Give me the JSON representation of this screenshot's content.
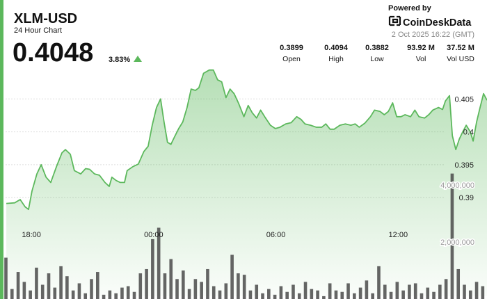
{
  "header": {
    "price": "0.4048",
    "change": "3.83%",
    "powered_by": "Powered by",
    "brand": "CoinDeskData",
    "timestamp": "2 Oct 2025 16:22 (GMT)",
    "stats": [
      {
        "value": "0.3899",
        "label": "Open"
      },
      {
        "value": "0.4094",
        "label": "High"
      },
      {
        "value": "0.3882",
        "label": "Low"
      },
      {
        "value": "93.92 M",
        "label": "Vol"
      },
      {
        "value": "37.52 M",
        "label": "Vol USD"
      }
    ]
  },
  "chart_data": [
    {
      "type": "area",
      "title": "XLM-USD",
      "subtitle": "24 Hour Chart",
      "color": "#5cb85c",
      "grid": true,
      "x": [
        16.77,
        17.18,
        17.45,
        17.69,
        17.86,
        18.03,
        18.27,
        18.48,
        18.72,
        18.95,
        19.23,
        19.5,
        19.67,
        19.91,
        20.11,
        20.42,
        20.66,
        20.86,
        21.1,
        21.34,
        21.61,
        21.82,
        21.95,
        22.16,
        22.36,
        22.57,
        22.7,
        22.98,
        23.25,
        23.52,
        23.73,
        23.93,
        24.14,
        24.34,
        24.51,
        24.68,
        24.85,
        25.02,
        25.23,
        25.43,
        25.64,
        25.84,
        26.05,
        26.22,
        26.45,
        26.73,
        26.93,
        27.14,
        27.34,
        27.55,
        27.75,
        27.95,
        28.16,
        28.43,
        28.64,
        28.84,
        29.05,
        29.25,
        29.45,
        29.73,
        29.97,
        30.2,
        30.48,
        30.75,
        31.02,
        31.23,
        31.43,
        31.7,
        31.98,
        32.25,
        32.45,
        32.66,
        32.86,
        33.14,
        33.41,
        33.68,
        33.89,
        34.09,
        34.36,
        34.64,
        34.84,
        35.11,
        35.32,
        35.52,
        35.73,
        35.93,
        36.14,
        36.34,
        36.61,
        36.82,
        37.02,
        37.3,
        37.5,
        37.7,
        37.98,
        38.18,
        38.32,
        38.52,
        38.66,
        38.83,
        39.0,
        39.17,
        39.34,
        39.54,
        39.68,
        39.85,
        40.02,
        40.19,
        40.36
      ],
      "values": [
        0.3891,
        0.3892,
        0.3897,
        0.3886,
        0.3882,
        0.391,
        0.3936,
        0.395,
        0.3931,
        0.3923,
        0.3947,
        0.3968,
        0.3973,
        0.3966,
        0.3941,
        0.3936,
        0.3944,
        0.3943,
        0.3936,
        0.3934,
        0.3923,
        0.3917,
        0.3931,
        0.3926,
        0.3923,
        0.3923,
        0.3941,
        0.3947,
        0.3951,
        0.397,
        0.3978,
        0.401,
        0.4037,
        0.405,
        0.4015,
        0.3984,
        0.3981,
        0.3992,
        0.4005,
        0.4015,
        0.4037,
        0.4065,
        0.4063,
        0.4067,
        0.4089,
        0.4094,
        0.4094,
        0.4079,
        0.4076,
        0.4052,
        0.4065,
        0.4058,
        0.4044,
        0.4023,
        0.404,
        0.4029,
        0.4021,
        0.4033,
        0.4023,
        0.401,
        0.4005,
        0.4007,
        0.4012,
        0.4014,
        0.4023,
        0.4019,
        0.4012,
        0.401,
        0.4007,
        0.4007,
        0.4012,
        0.4004,
        0.4004,
        0.401,
        0.4012,
        0.401,
        0.4012,
        0.4007,
        0.4013,
        0.4023,
        0.4033,
        0.4031,
        0.4026,
        0.4031,
        0.4044,
        0.4023,
        0.4023,
        0.4026,
        0.4023,
        0.4033,
        0.4023,
        0.4021,
        0.4026,
        0.4033,
        0.4037,
        0.4034,
        0.4047,
        0.4055,
        0.3994,
        0.3973,
        0.3989,
        0.4,
        0.401,
        0.4,
        0.3986,
        0.4015,
        0.4037,
        0.4058,
        0.4048
      ],
      "xlim": [
        16.75,
        40.36
      ],
      "ylim": [
        0.375,
        0.41
      ],
      "xticks": [
        {
          "value": 18,
          "label": "18:00"
        },
        {
          "value": 24,
          "label": "00:00"
        },
        {
          "value": 30,
          "label": "06:00"
        },
        {
          "value": 36,
          "label": "12:00"
        }
      ],
      "yticks": [
        0.39,
        0.395,
        0.4,
        0.405
      ]
    },
    {
      "type": "bar",
      "color": "#4a4a4a",
      "x": [
        16.75,
        17.05,
        17.35,
        17.65,
        17.95,
        18.25,
        18.55,
        18.85,
        19.15,
        19.45,
        19.75,
        20.05,
        20.35,
        20.65,
        20.95,
        21.25,
        21.55,
        21.85,
        22.15,
        22.45,
        22.75,
        23.05,
        23.35,
        23.65,
        23.95,
        24.25,
        24.55,
        24.85,
        25.15,
        25.45,
        25.75,
        26.05,
        26.35,
        26.65,
        26.95,
        27.25,
        27.55,
        27.85,
        28.15,
        28.45,
        28.75,
        29.05,
        29.35,
        29.65,
        29.95,
        30.25,
        30.55,
        30.85,
        31.15,
        31.45,
        31.75,
        32.05,
        32.35,
        32.65,
        32.95,
        33.25,
        33.55,
        33.85,
        34.15,
        34.45,
        34.75,
        35.05,
        35.35,
        35.65,
        35.95,
        36.25,
        36.55,
        36.85,
        37.15,
        37.45,
        37.75,
        38.05,
        38.35,
        38.65,
        38.95,
        39.25,
        39.55,
        39.85,
        40.15
      ],
      "values": [
        1450000,
        350000,
        950000,
        600000,
        300000,
        1100000,
        500000,
        900000,
        400000,
        1150000,
        800000,
        300000,
        550000,
        200000,
        700000,
        950000,
        150000,
        300000,
        200000,
        400000,
        450000,
        250000,
        900000,
        1050000,
        2100000,
        2500000,
        900000,
        1400000,
        700000,
        1000000,
        350000,
        700000,
        600000,
        1050000,
        450000,
        300000,
        550000,
        1550000,
        900000,
        850000,
        300000,
        500000,
        200000,
        350000,
        150000,
        450000,
        250000,
        500000,
        200000,
        600000,
        350000,
        300000,
        100000,
        550000,
        300000,
        250000,
        550000,
        200000,
        400000,
        650000,
        200000,
        1150000,
        500000,
        250000,
        600000,
        300000,
        500000,
        550000,
        200000,
        400000,
        250000,
        500000,
        700000,
        4400000,
        1050000,
        500000,
        300000,
        600000,
        450000
      ],
      "xlim": [
        16.75,
        40.36
      ],
      "ylim": [
        0,
        10000000
      ],
      "yticks": [
        {
          "value": 2000000,
          "label": "2,000,000"
        },
        {
          "value": 4000000,
          "label": "4,000,000"
        }
      ]
    }
  ]
}
